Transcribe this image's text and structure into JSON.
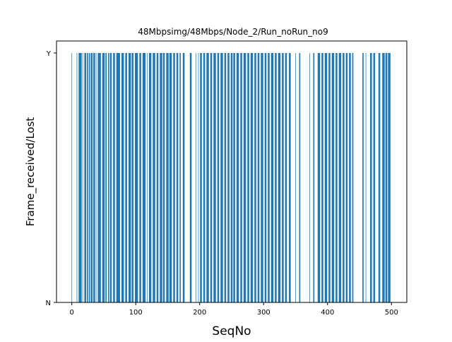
{
  "chart_data": {
    "type": "bar",
    "title": "48Mbpsimg/48Mbps/Node_2/Run_noRun_no9",
    "xlabel": "SeqNo",
    "ylabel": "Frame_received/Lost",
    "xlim": [
      -24,
      524
    ],
    "ylim": [
      0,
      1
    ],
    "xticks": [
      0,
      100,
      200,
      300,
      400,
      500
    ],
    "yticks": [
      {
        "value": 0,
        "label": "N"
      },
      {
        "value": 1,
        "label": "Y"
      }
    ],
    "bar_color": "#1f77b4",
    "grid": false,
    "received_runs": [
      [
        0,
        0
      ],
      [
        8,
        8
      ],
      [
        11,
        15
      ],
      [
        17,
        17
      ],
      [
        20,
        22
      ],
      [
        24,
        25
      ],
      [
        27,
        28
      ],
      [
        30,
        32
      ],
      [
        34,
        36
      ],
      [
        38,
        38
      ],
      [
        41,
        45
      ],
      [
        48,
        51
      ],
      [
        53,
        54
      ],
      [
        57,
        58
      ],
      [
        60,
        62
      ],
      [
        65,
        67
      ],
      [
        70,
        75
      ],
      [
        78,
        81
      ],
      [
        84,
        86
      ],
      [
        89,
        92
      ],
      [
        94,
        96
      ],
      [
        99,
        103
      ],
      [
        106,
        108
      ],
      [
        111,
        115
      ],
      [
        118,
        118
      ],
      [
        121,
        124
      ],
      [
        127,
        130
      ],
      [
        133,
        135
      ],
      [
        138,
        141
      ],
      [
        143,
        145
      ],
      [
        148,
        151
      ],
      [
        153,
        156
      ],
      [
        159,
        161
      ],
      [
        164,
        166
      ],
      [
        169,
        170
      ],
      [
        174,
        176
      ],
      [
        185,
        187
      ],
      [
        194,
        194
      ],
      [
        198,
        198
      ],
      [
        201,
        203
      ],
      [
        206,
        208
      ],
      [
        211,
        214
      ],
      [
        217,
        219
      ],
      [
        222,
        225
      ],
      [
        228,
        230
      ],
      [
        233,
        236
      ],
      [
        239,
        241
      ],
      [
        244,
        246
      ],
      [
        249,
        251
      ],
      [
        253,
        255
      ],
      [
        258,
        261
      ],
      [
        264,
        266
      ],
      [
        269,
        272
      ],
      [
        275,
        277
      ],
      [
        280,
        283
      ],
      [
        286,
        288
      ],
      [
        291,
        293
      ],
      [
        296,
        299
      ],
      [
        302,
        304
      ],
      [
        307,
        309
      ],
      [
        312,
        315
      ],
      [
        318,
        320
      ],
      [
        323,
        326
      ],
      [
        329,
        331
      ],
      [
        334,
        336
      ],
      [
        340,
        342
      ],
      [
        350,
        350
      ],
      [
        356,
        357
      ],
      [
        372,
        372
      ],
      [
        378,
        379
      ],
      [
        385,
        388
      ],
      [
        391,
        393
      ],
      [
        396,
        399
      ],
      [
        402,
        404
      ],
      [
        407,
        410
      ],
      [
        413,
        415
      ],
      [
        418,
        421
      ],
      [
        424,
        426
      ],
      [
        429,
        431
      ],
      [
        434,
        436
      ],
      [
        439,
        440
      ],
      [
        455,
        456
      ],
      [
        460,
        460
      ],
      [
        467,
        469
      ],
      [
        472,
        474
      ],
      [
        480,
        482
      ],
      [
        486,
        489
      ],
      [
        491,
        493
      ],
      [
        495,
        498
      ]
    ]
  }
}
